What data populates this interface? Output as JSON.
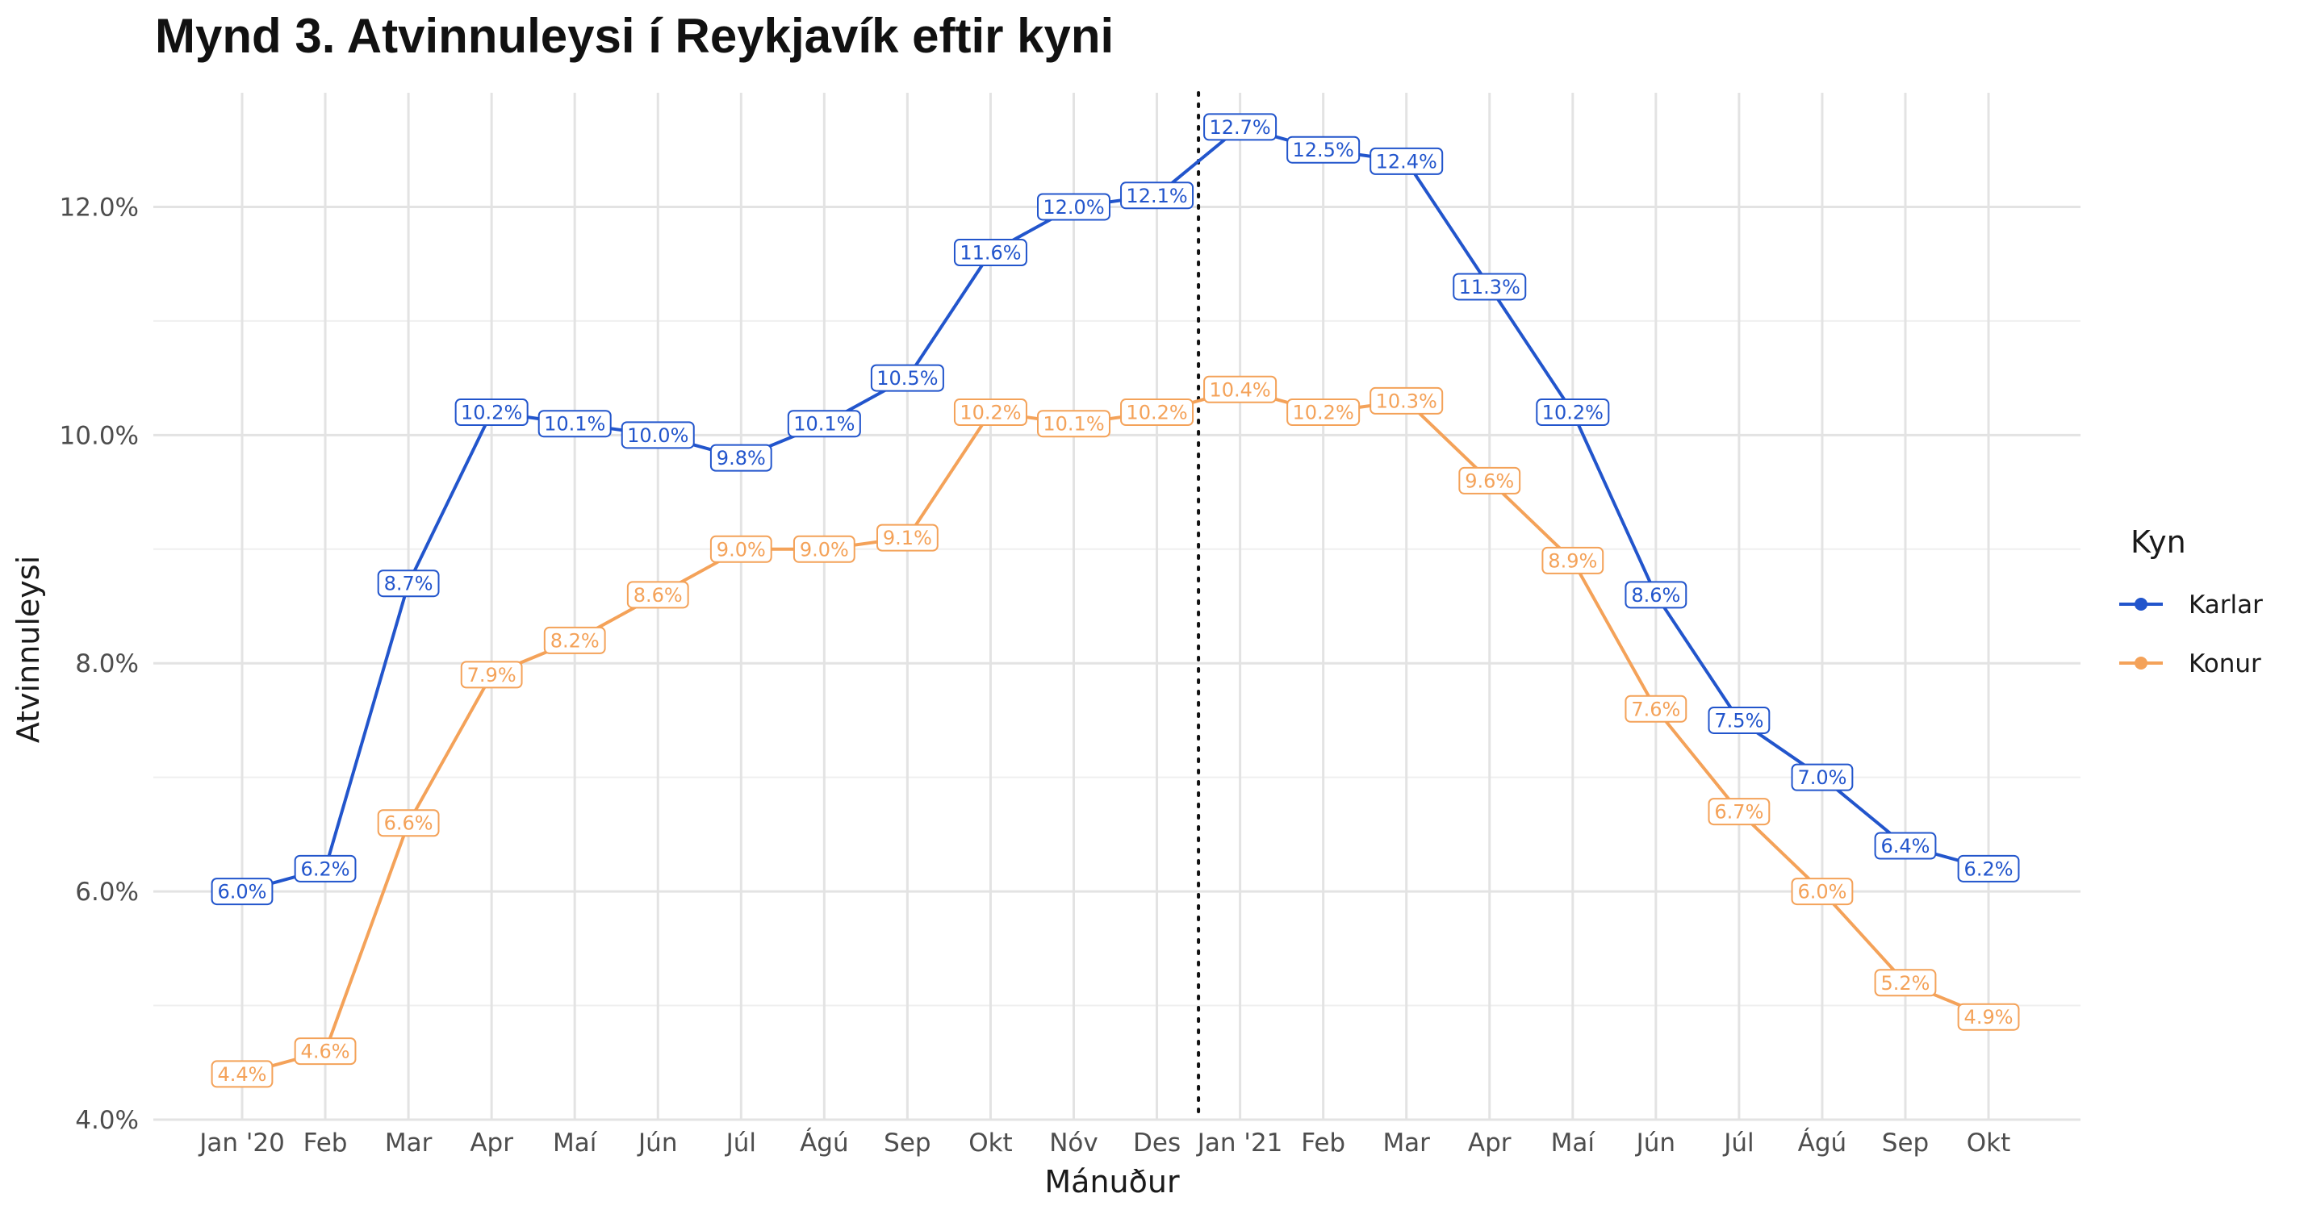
{
  "chart_data": {
    "type": "line",
    "title": "Mynd 3. Atvinnuleysi í Reykjavík eftir kyni",
    "xlabel": "Mánuður",
    "ylabel": "Atvinnuleysi",
    "categories": [
      "Jan '20",
      "Feb",
      "Mar",
      "Apr",
      "Maí",
      "Jún",
      "Júl",
      "Ágú",
      "Sep",
      "Okt",
      "Nóv",
      "Des",
      "Jan '21",
      "Feb",
      "Mar",
      "Apr",
      "Maí",
      "Jún",
      "Júl",
      "Ágú",
      "Sep",
      "Okt"
    ],
    "ylim": [
      4.0,
      13.0
    ],
    "yticks": [
      4.0,
      6.0,
      8.0,
      10.0,
      12.0
    ],
    "ytick_labels": [
      "4.0%",
      "6.0%",
      "8.0%",
      "10.0%",
      "12.0%"
    ],
    "grid": true,
    "reference_line": {
      "style": "dotted",
      "position": "between Des and Jan '21"
    },
    "legend": {
      "title": "Kyn",
      "placement": "right"
    },
    "series": [
      {
        "name": "Karlar",
        "color": "#2255cc",
        "values": [
          6.0,
          6.2,
          8.7,
          10.2,
          10.1,
          10.0,
          9.8,
          10.1,
          10.5,
          11.6,
          12.0,
          12.1,
          12.7,
          12.5,
          12.4,
          11.3,
          10.2,
          8.6,
          7.5,
          7.0,
          6.4,
          6.2
        ],
        "labels": [
          "6.0%",
          "6.2%",
          "8.7%",
          "10.2%",
          "10.1%",
          "10.0%",
          "9.8%",
          "10.1%",
          "10.5%",
          "11.6%",
          "12.0%",
          "12.1%",
          "12.7%",
          "12.5%",
          "12.4%",
          "11.3%",
          "10.2%",
          "8.6%",
          "7.5%",
          "7.0%",
          "6.4%",
          "6.2%"
        ]
      },
      {
        "name": "Konur",
        "color": "#f4a259",
        "values": [
          4.4,
          4.6,
          6.6,
          7.9,
          8.2,
          8.6,
          9.0,
          9.0,
          9.1,
          10.2,
          10.1,
          10.2,
          10.4,
          10.2,
          10.3,
          9.6,
          8.9,
          7.6,
          6.7,
          6.0,
          5.2,
          4.9
        ],
        "labels": [
          "4.4%",
          "4.6%",
          "6.6%",
          "7.9%",
          "8.2%",
          "8.6%",
          "9.0%",
          "9.0%",
          "9.1%",
          "10.2%",
          "10.1%",
          "10.2%",
          "10.4%",
          "10.2%",
          "10.3%",
          "9.6%",
          "8.9%",
          "7.6%",
          "6.7%",
          "6.0%",
          "5.2%",
          "4.9%"
        ]
      }
    ]
  }
}
